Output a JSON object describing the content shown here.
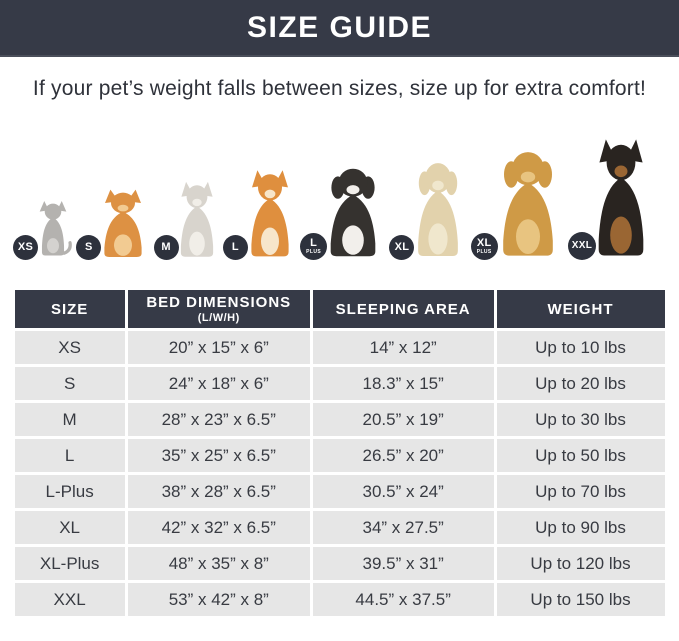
{
  "header": {
    "title": "SIZE GUIDE"
  },
  "subtitle": "If your pet’s weight falls between sizes, size up for extra comfort!",
  "colors": {
    "band_bg": "#363a47",
    "table_header_bg": "#363a47",
    "row_bg": "#e6e6e6",
    "badge_bg": "#2d313c",
    "title_text": "#ffffff",
    "body_text": "#2f323a"
  },
  "pets": [
    {
      "animal": "cat",
      "label": "XS",
      "sublabel": "",
      "body_color": "#b4b2af",
      "accent_color": "#d4d2cf"
    },
    {
      "animal": "pomeranian",
      "label": "S",
      "sublabel": "",
      "body_color": "#dd9143",
      "accent_color": "#f2cb92"
    },
    {
      "animal": "french-bulldog",
      "label": "M",
      "sublabel": "",
      "body_color": "#d8d4cd",
      "accent_color": "#f1eee8"
    },
    {
      "animal": "shiba-inu",
      "label": "L",
      "sublabel": "",
      "body_color": "#df8f3e",
      "accent_color": "#f7e6cb"
    },
    {
      "animal": "border-collie",
      "label": "L",
      "sublabel": "PLUS",
      "body_color": "#35322f",
      "accent_color": "#f2efeb"
    },
    {
      "animal": "labrador",
      "label": "XL",
      "sublabel": "",
      "body_color": "#e2d2ac",
      "accent_color": "#f0e7cd"
    },
    {
      "animal": "golden-retriever",
      "label": "XL",
      "sublabel": "PLUS",
      "body_color": "#cf9a46",
      "accent_color": "#e8c480"
    },
    {
      "animal": "doberman",
      "label": "XXL",
      "sublabel": "",
      "body_color": "#292420",
      "accent_color": "#9a6633"
    }
  ],
  "table": {
    "columns": [
      {
        "label": "SIZE",
        "sub": ""
      },
      {
        "label": "BED DIMENSIONS",
        "sub": "(L/W/H)"
      },
      {
        "label": "SLEEPING AREA",
        "sub": ""
      },
      {
        "label": "WEIGHT",
        "sub": ""
      }
    ],
    "rows": [
      {
        "size": "XS",
        "bed_dimensions": "20” x 15” x 6”",
        "sleeping_area": "14” x 12”",
        "weight": "Up to 10 lbs"
      },
      {
        "size": "S",
        "bed_dimensions": "24” x 18” x 6”",
        "sleeping_area": "18.3” x 15”",
        "weight": "Up to 20 lbs"
      },
      {
        "size": "M",
        "bed_dimensions": "28” x 23” x 6.5”",
        "sleeping_area": "20.5” x 19”",
        "weight": "Up to 30 lbs"
      },
      {
        "size": "L",
        "bed_dimensions": "35” x 25” x 6.5”",
        "sleeping_area": "26.5” x 20”",
        "weight": "Up to 50 lbs"
      },
      {
        "size": "L-Plus",
        "bed_dimensions": "38” x 28” x 6.5”",
        "sleeping_area": "30.5” x 24”",
        "weight": "Up to 70 lbs"
      },
      {
        "size": "XL",
        "bed_dimensions": "42” x 32” x 6.5”",
        "sleeping_area": "34” x 27.5”",
        "weight": "Up to 90 lbs"
      },
      {
        "size": "XL-Plus",
        "bed_dimensions": "48” x 35” x 8”",
        "sleeping_area": "39.5” x 31”",
        "weight": "Up to 120 lbs"
      },
      {
        "size": "XXL",
        "bed_dimensions": "53” x 42” x 8”",
        "sleeping_area": "44.5” x 37.5”",
        "weight": "Up to 150 lbs"
      }
    ]
  }
}
